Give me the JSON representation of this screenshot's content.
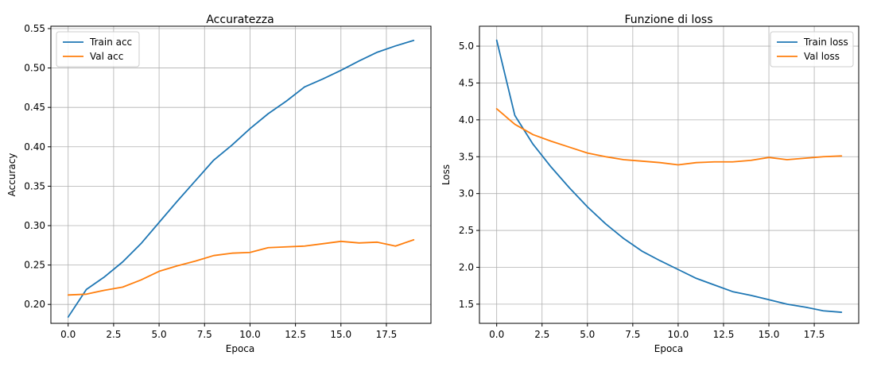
{
  "colors": {
    "train": "#1f77b4",
    "val": "#ff7f0e"
  },
  "chart_data": [
    {
      "type": "line",
      "title": "Accuratezza",
      "xlabel": "Epoca",
      "ylabel": "Accuracy",
      "xlim": [
        -0.95,
        19.95
      ],
      "ylim": [
        0.176,
        0.553
      ],
      "xticks": [
        0.0,
        2.5,
        5.0,
        7.5,
        10.0,
        12.5,
        15.0,
        17.5
      ],
      "xtick_labels": [
        "0.0",
        "2.5",
        "5.0",
        "7.5",
        "10.0",
        "12.5",
        "15.0",
        "17.5"
      ],
      "yticks": [
        0.2,
        0.25,
        0.3,
        0.35,
        0.4,
        0.45,
        0.5,
        0.55
      ],
      "ytick_labels": [
        "0.20",
        "0.25",
        "0.30",
        "0.35",
        "0.40",
        "0.45",
        "0.50",
        "0.55"
      ],
      "grid": true,
      "legend": "upper-left",
      "x": [
        0,
        1,
        2,
        3,
        4,
        5,
        6,
        7,
        8,
        9,
        10,
        11,
        12,
        13,
        14,
        15,
        16,
        17,
        18,
        19
      ],
      "series": [
        {
          "name": "Train acc",
          "color": "#1f77b4",
          "values": [
            0.184,
            0.219,
            0.235,
            0.254,
            0.277,
            0.304,
            0.331,
            0.357,
            0.383,
            0.402,
            0.423,
            0.442,
            0.458,
            0.476,
            0.486,
            0.497,
            0.509,
            0.52,
            0.528,
            0.535
          ]
        },
        {
          "name": "Val acc",
          "color": "#ff7f0e",
          "values": [
            0.212,
            0.213,
            0.218,
            0.222,
            0.231,
            0.242,
            0.249,
            0.255,
            0.262,
            0.265,
            0.266,
            0.272,
            0.273,
            0.274,
            0.277,
            0.28,
            0.278,
            0.279,
            0.274,
            0.282
          ]
        }
      ]
    },
    {
      "type": "line",
      "title": "Funzione di loss",
      "xlabel": "Epoca",
      "ylabel": "Loss",
      "xlim": [
        -0.95,
        19.95
      ],
      "ylim": [
        1.24,
        5.27
      ],
      "xticks": [
        0.0,
        2.5,
        5.0,
        7.5,
        10.0,
        12.5,
        15.0,
        17.5
      ],
      "xtick_labels": [
        "0.0",
        "2.5",
        "5.0",
        "7.5",
        "10.0",
        "12.5",
        "15.0",
        "17.5"
      ],
      "yticks": [
        1.5,
        2.0,
        2.5,
        3.0,
        3.5,
        4.0,
        4.5,
        5.0
      ],
      "ytick_labels": [
        "1.5",
        "2.0",
        "2.5",
        "3.0",
        "3.5",
        "4.0",
        "4.5",
        "5.0"
      ],
      "grid": true,
      "legend": "upper-right",
      "x": [
        0,
        1,
        2,
        3,
        4,
        5,
        6,
        7,
        8,
        9,
        10,
        11,
        12,
        13,
        14,
        15,
        16,
        17,
        18,
        19
      ],
      "series": [
        {
          "name": "Train loss",
          "color": "#1f77b4",
          "values": [
            5.08,
            4.06,
            3.67,
            3.36,
            3.08,
            2.82,
            2.59,
            2.39,
            2.22,
            2.09,
            1.97,
            1.85,
            1.76,
            1.67,
            1.62,
            1.56,
            1.5,
            1.46,
            1.41,
            1.39
          ]
        },
        {
          "name": "Val loss",
          "color": "#ff7f0e",
          "values": [
            4.15,
            3.94,
            3.8,
            3.71,
            3.63,
            3.55,
            3.5,
            3.46,
            3.44,
            3.42,
            3.39,
            3.42,
            3.43,
            3.43,
            3.45,
            3.49,
            3.46,
            3.48,
            3.5,
            3.51
          ]
        }
      ]
    }
  ]
}
